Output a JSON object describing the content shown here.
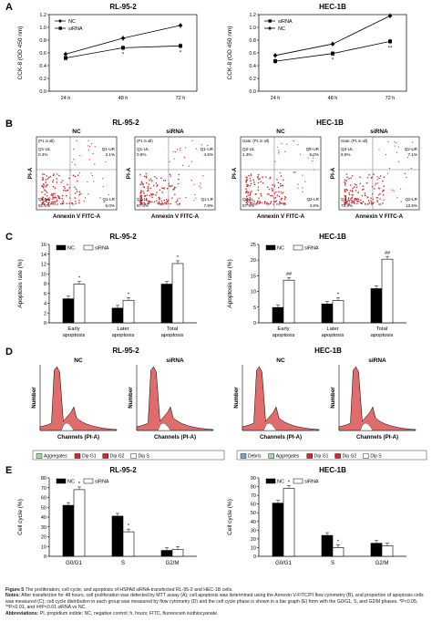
{
  "panels": {
    "A": {
      "letter": "A",
      "ylabel": "CCK-8 (OD 450 nm)",
      "charts": [
        {
          "title": "RL-95-2",
          "x": [
            "24 h",
            "48 h",
            "72 h"
          ],
          "ylim": [
            0,
            1.2
          ],
          "yticks": [
            "0.0",
            "0.2",
            "0.4",
            "0.6",
            "0.8",
            "1.0",
            "1.2"
          ],
          "legend": [
            "NC",
            "siRNA"
          ],
          "series": [
            {
              "name": "NC",
              "values": [
                0.58,
                0.83,
                1.03
              ]
            },
            {
              "name": "siRNA",
              "values": [
                0.52,
                0.68,
                0.71
              ]
            }
          ],
          "sig": [
            "",
            "*",
            "*"
          ]
        },
        {
          "title": "HEC-1B",
          "x": [
            "24 h",
            "48 h",
            "72 h"
          ],
          "ylim": [
            0,
            1.2
          ],
          "yticks": [
            "0.0",
            "0.2",
            "0.4",
            "0.6",
            "0.8",
            "1.0",
            "1.2"
          ],
          "legend": [
            "siRNA",
            "NC"
          ],
          "series": [
            {
              "name": "siRNA",
              "values": [
                0.47,
                0.59,
                0.78
              ]
            },
            {
              "name": "NC",
              "values": [
                0.56,
                0.74,
                1.18
              ]
            }
          ],
          "sig": [
            "",
            "*",
            "**"
          ]
        }
      ]
    },
    "B": {
      "letter": "B",
      "plots": [
        {
          "group": "RL-95-2",
          "cond": "NC",
          "gate": "(P1 in all)",
          "ul": "Q1-UL",
          "ulv": "0.4%",
          "ur": "Q1-UR",
          "urv": "3.1%",
          "ll": "Q1-LL",
          "llv": "91.6%",
          "lr": "Q1-LR",
          "lrv": "5.0%",
          "ylab": "PI-A",
          "xlab": "Annexin V FITC-A"
        },
        {
          "group": "RL-95-2",
          "cond": "siRNA",
          "gate": "(P1 in all)",
          "ul": "Q1-UL",
          "ulv": "0.6%",
          "ur": "Q1-UR",
          "urv": "4.5%",
          "ll": "Q1-LL",
          "llv": "87.0%",
          "lr": "Q1-LR",
          "lrv": "7.9%",
          "ylab": "PI-A",
          "xlab": "Annexin V FITC-A"
        },
        {
          "group": "HEC-1B",
          "cond": "NC",
          "gate": "Gate: (P1 in all)",
          "ul": "Q2-UL",
          "ulv": "1.3%",
          "ur": "Q2-UR",
          "urv": "6.0%",
          "ll": "Q2-LL",
          "llv": "87.9%",
          "lr": "Q2-LR",
          "lrv": "4.8%",
          "ylab": "PI-A",
          "xlab": "Annexin V FITC-A"
        },
        {
          "group": "HEC-1B",
          "cond": "siRNA",
          "gate": "Gate: (P1 in all)",
          "ul": "Q2-UL",
          "ulv": "6.5%",
          "ur": "Q2-UR",
          "urv": "7.1%",
          "ll": "Q2-LL",
          "llv": "73.9%",
          "lr": "Q2-LR",
          "lrv": "13.5%",
          "ylab": "PI-A",
          "xlab": "Annexin V FITC-A"
        }
      ]
    },
    "C": {
      "letter": "C",
      "ylabel": "Apoptosis rate (%)",
      "charts": [
        {
          "title": "RL-95-2",
          "categories": [
            "Early apoptosis",
            "Later apoptosis",
            "Total apoptosis"
          ],
          "ylim": [
            0,
            16
          ],
          "yticks": [
            "0",
            "2",
            "4",
            "6",
            "8",
            "10",
            "12",
            "14",
            "16"
          ],
          "legend": [
            "NC",
            "siRNA"
          ],
          "series": [
            {
              "name": "NC",
              "values": [
                4.9,
                3.0,
                7.9
              ]
            },
            {
              "name": "siRNA",
              "values": [
                7.9,
                4.6,
                12.1
              ]
            }
          ],
          "sig": [
            "*",
            "*",
            "*"
          ]
        },
        {
          "title": "HEC-1B",
          "categories": [
            "Early apoptosis",
            "Later apoptosis",
            "Total apoptosis"
          ],
          "ylim": [
            0,
            25
          ],
          "yticks": [
            "0",
            "5",
            "10",
            "15",
            "20",
            "25"
          ],
          "legend": [
            "NC",
            "siRNA"
          ],
          "series": [
            {
              "name": "NC",
              "values": [
                4.9,
                6.0,
                10.9
              ]
            },
            {
              "name": "siRNA",
              "values": [
                13.6,
                7.1,
                20.3
              ]
            }
          ],
          "sig": [
            "##",
            "*",
            "##"
          ]
        }
      ]
    },
    "D": {
      "letter": "D",
      "ylabel": "Number",
      "xlabel": "Channels (PI-A)",
      "groups": [
        {
          "title": "RL-95-2",
          "conds": [
            "NC",
            "siRNA"
          ],
          "legend": [
            {
              "name": "Aggregates",
              "color": "#a6dba0"
            },
            {
              "name": "Dip G1",
              "color": "#d62728"
            },
            {
              "name": "Dip G2",
              "color": "#d62728"
            },
            {
              "name": "Dip S",
              "color": "#ffffff"
            }
          ]
        },
        {
          "title": "HEC-1B",
          "conds": [
            "NC",
            "siRNA"
          ],
          "legend": [
            {
              "name": "Debris",
              "color": "#7b9fd4"
            },
            {
              "name": "Aggregates",
              "color": "#a6dba0"
            },
            {
              "name": "Dip G1",
              "color": "#d62728"
            },
            {
              "name": "Dip G2",
              "color": "#d62728"
            },
            {
              "name": "Dip S",
              "color": "#ffffff"
            }
          ]
        }
      ]
    },
    "E": {
      "letter": "E",
      "ylabel": "Cell cycle (%)",
      "charts": [
        {
          "title": "RL-95-2",
          "categories": [
            "G0/G1",
            "S",
            "G2/M"
          ],
          "ylim": [
            0,
            80
          ],
          "yticks": [
            "0",
            "10",
            "20",
            "30",
            "40",
            "50",
            "60",
            "70",
            "80"
          ],
          "legend": [
            "NC",
            "siRNA"
          ],
          "series": [
            {
              "name": "NC",
              "values": [
                52,
                41,
                6
              ]
            },
            {
              "name": "siRNA",
              "values": [
                68,
                25,
                7
              ]
            }
          ],
          "sig": [
            "*",
            "*",
            ""
          ]
        },
        {
          "title": "HEC-1B",
          "categories": [
            "G0/G1",
            "S",
            "G2/M"
          ],
          "ylim": [
            0,
            90
          ],
          "yticks": [
            "0",
            "10",
            "20",
            "30",
            "40",
            "50",
            "60",
            "70",
            "80",
            "90"
          ],
          "legend": [
            "NC",
            "siRNA"
          ],
          "series": [
            {
              "name": "NC",
              "values": [
                61,
                24,
                15
              ]
            },
            {
              "name": "siRNA",
              "values": [
                78,
                10,
                12
              ]
            }
          ],
          "sig": [
            "*",
            "*",
            ""
          ]
        }
      ]
    }
  },
  "caption": {
    "title_bold": "Figure 5",
    "title": " The proliferation, cell cycle, and apoptosis of HSPA8 siRNA-transfected RL-95-2 and HEC-1B cells.",
    "notes_bold": "Notes:",
    "notes": " After transfection for 48 hours, cell proliferation was detected by MTT assay (A); cell apoptosis was determined using the Annexin V-FITC/PI flow cytometry (B), and proportion of apoptosis cells was measured (C); cell cycle distribution in each group was measured by flow cytometry (D) and the cell cycle phase is shown in a bar graph (E) form with the G0/G1, S, and G2/M phases. *P<0.05, **P<0.01, and ##P<0.01 siRNA vs NC.",
    "abbr_bold": "Abbreviations:",
    "abbr": " PI, propidium iodide; NC, negative control; h, hours; FITC, fluorescein isothiocyanate."
  }
}
